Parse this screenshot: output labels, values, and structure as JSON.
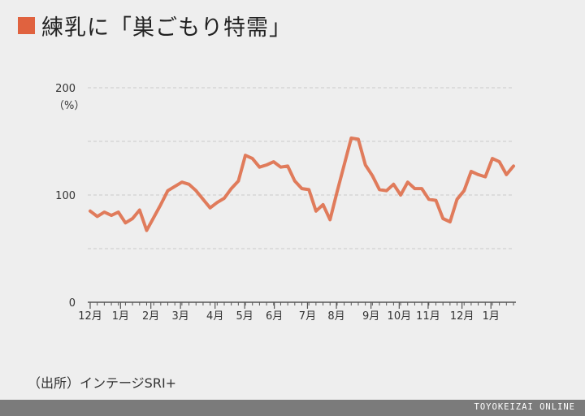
{
  "title": "練乳に「巣ごもり特需」",
  "colors": {
    "accent": "#e0623f",
    "line": "#e07b5b",
    "grid": "#c9c9c9",
    "axis": "#555555"
  },
  "source": "（出所）インテージSRI+",
  "footer_brand": "TOYOKEIZAI ONLINE",
  "chart_data": {
    "type": "line",
    "title": "",
    "xlabel": "",
    "ylabel": "（%）",
    "ylim": [
      0,
      200
    ],
    "yticks": [
      {
        "value": 0,
        "label": "0"
      },
      {
        "value": 100,
        "label": "100"
      },
      {
        "value": 200,
        "label": "200"
      }
    ],
    "grid": true,
    "week_count": 52,
    "xticks": [
      {
        "week": 0,
        "label": "12月"
      },
      {
        "week": 4.3,
        "label": "1月"
      },
      {
        "week": 8.6,
        "label": "2月"
      },
      {
        "week": 12.8,
        "label": "3月"
      },
      {
        "week": 17.7,
        "label": "4月"
      },
      {
        "week": 21.9,
        "label": "5月"
      },
      {
        "week": 26.1,
        "label": "6月"
      },
      {
        "week": 30.8,
        "label": "7月"
      },
      {
        "week": 34.9,
        "label": "8月"
      },
      {
        "week": 39.8,
        "label": "9月"
      },
      {
        "week": 43.8,
        "label": "10月"
      },
      {
        "week": 47.9,
        "label": "11月"
      },
      {
        "week": 52.7,
        "label": "12月"
      },
      {
        "week": 56.8,
        "label": "1月"
      }
    ],
    "series": [
      {
        "values": [
          85,
          80,
          84,
          81,
          84,
          74,
          78,
          86,
          67,
          79,
          91,
          104,
          108,
          112,
          110,
          104,
          96,
          88,
          93,
          97,
          106,
          113,
          137,
          134,
          126,
          128,
          131,
          126,
          127,
          113,
          106,
          105,
          85,
          91,
          77,
          103,
          128,
          153,
          152,
          128,
          118,
          105,
          104,
          110,
          100,
          112,
          106,
          106,
          96,
          95,
          78,
          75,
          96,
          104,
          122,
          119,
          117,
          134,
          131,
          119,
          127
        ]
      }
    ]
  }
}
